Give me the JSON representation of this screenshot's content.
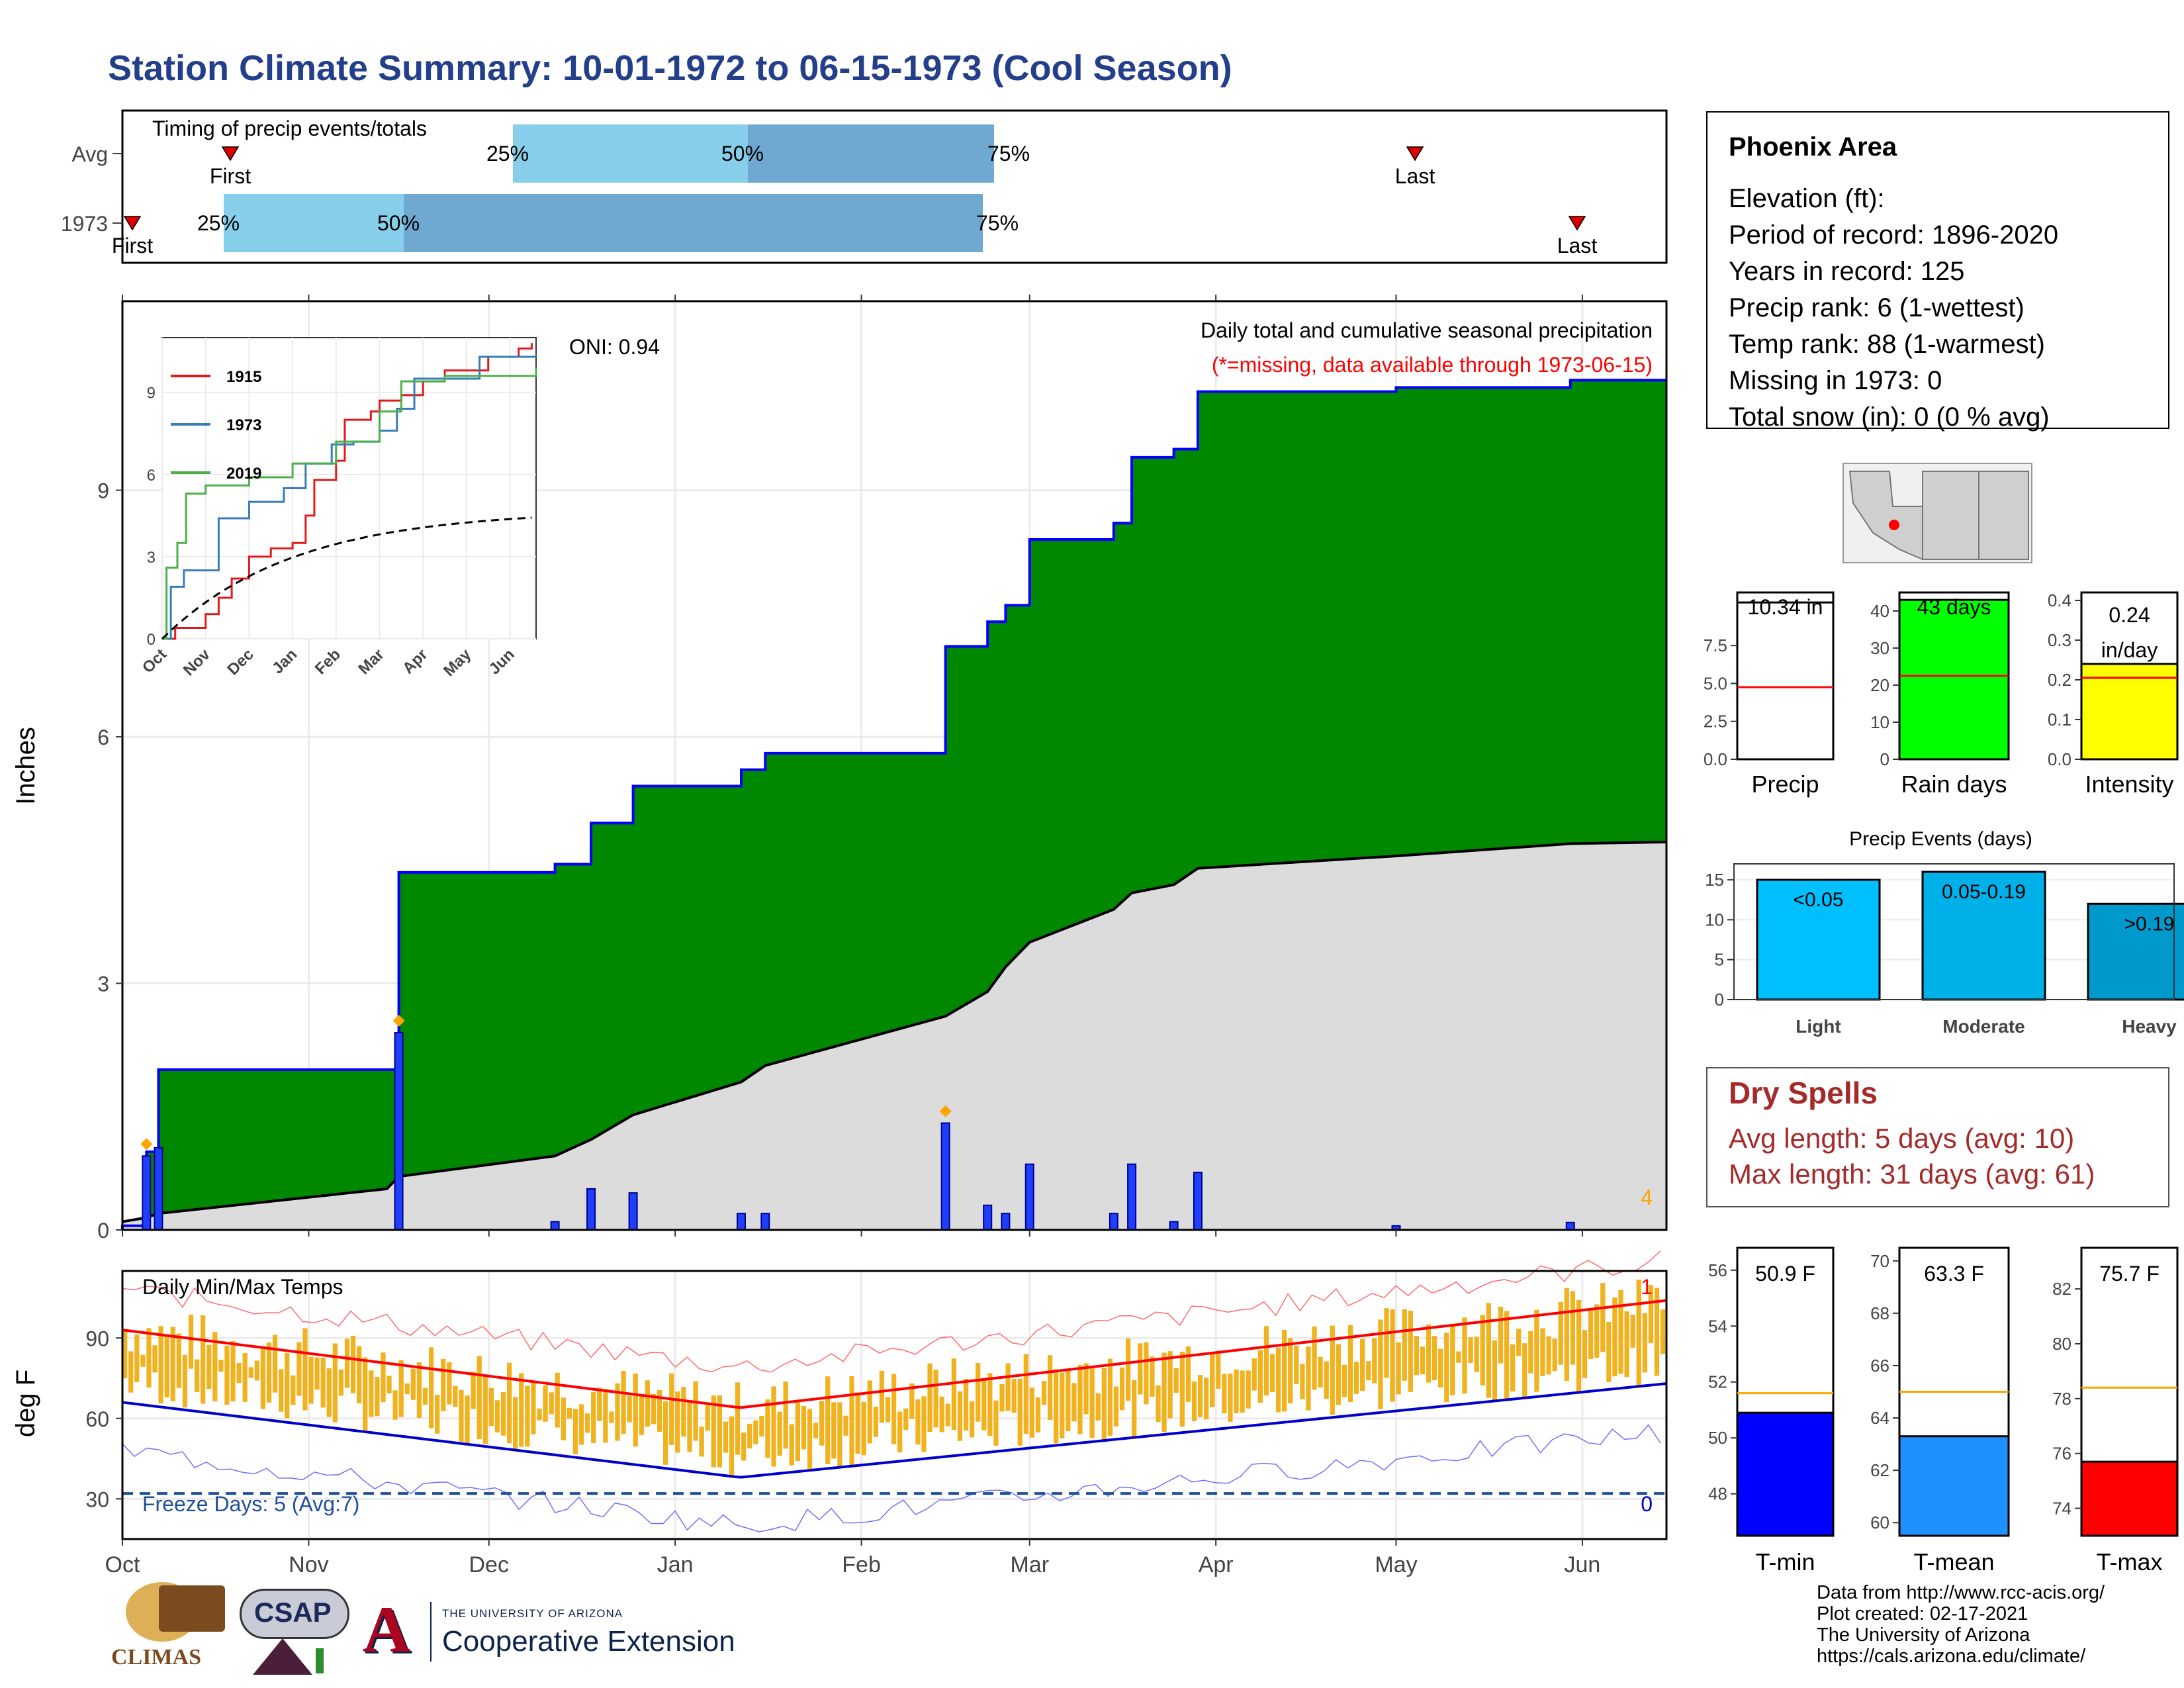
{
  "title": "Station Climate Summary: 10-01-1972 to 06-15-1973 (Cool Season)",
  "timing": {
    "label": "Timing of precip events/totals",
    "rows": [
      {
        "name": "Avg",
        "first": "First",
        "last": "Last",
        "q25": "25%",
        "q50": "50%",
        "q75": "75%"
      },
      {
        "name": "1973",
        "first": "First",
        "last": "Last",
        "q25": "25%",
        "q50": "50%",
        "q75": "75%"
      }
    ]
  },
  "main": {
    "ylabel": "Inches",
    "oni": "ONI: 0.94",
    "caption": "Daily total and cumulative seasonal precipitation",
    "missing_note": "(*=missing, data available through 1973-06-15)",
    "count_label": "4",
    "yticks": [
      "0",
      "3",
      "6",
      "9"
    ]
  },
  "inset": {
    "legend": [
      "1915",
      "1973",
      "2019"
    ],
    "yticks": [
      "0",
      "3",
      "6",
      "9"
    ],
    "xticks": [
      "Oct",
      "Nov",
      "Dec",
      "Jan",
      "Feb",
      "Mar",
      "Apr",
      "May",
      "Jun"
    ]
  },
  "temps": {
    "label": "Daily Min/Max Temps",
    "ylabel": "deg F",
    "yticks": [
      "30",
      "60",
      "90"
    ],
    "freeze": "Freeze Days: 5 (Avg:7)",
    "freeze_count": "0",
    "hot_count": "1",
    "months": [
      "Oct",
      "Nov",
      "Dec",
      "Jan",
      "Feb",
      "Mar",
      "Apr",
      "May",
      "Jun"
    ]
  },
  "station": {
    "name": "Phoenix Area",
    "lines": [
      "Elevation (ft):",
      "Period of record: 1896-2020",
      "Years in record: 125",
      "Precip rank: 6 (1-wettest)",
      "Temp rank: 88 (1-warmest)",
      "Missing in 1973: 0",
      "Total snow (in): 0 (0 % avg)"
    ]
  },
  "mini_bars": [
    {
      "label": "Precip",
      "value_text": "10.34 in",
      "yticks": [
        "0.0",
        "2.5",
        "5.0",
        "7.5"
      ],
      "color": "#ffffff"
    },
    {
      "label": "Rain days",
      "value_text": "43 days",
      "yticks": [
        "0",
        "10",
        "20",
        "30",
        "40"
      ],
      "color": "#00ff00"
    },
    {
      "label": "Intensity",
      "value_text": "0.24 in/day",
      "yticks": [
        "0.0",
        "0.1",
        "0.2",
        "0.3",
        "0.4"
      ],
      "color": "#ffff00"
    }
  ],
  "events": {
    "title": "Precip Events (days)",
    "yticks": [
      "0",
      "5",
      "10",
      "15"
    ],
    "bars": [
      {
        "name": "Light",
        "label": "<0.05",
        "value": 15,
        "color": "#00bfff"
      },
      {
        "name": "Moderate",
        "label": "0.05-0.19",
        "value": 16,
        "color": "#00b0e8"
      },
      {
        "name": "Heavy",
        "label": ">0.19",
        "value": 12,
        "color": "#0099cc"
      }
    ]
  },
  "dry_spells": {
    "title": "Dry Spells",
    "avg": "Avg length: 5 days (avg: 10)",
    "max": "Max length: 31 days (avg: 61)"
  },
  "temp_bars": [
    {
      "label": "T-min",
      "value_text": "50.9 F",
      "yticks": [
        "48",
        "50",
        "52",
        "54",
        "56"
      ],
      "color": "#0000ff"
    },
    {
      "label": "T-mean",
      "value_text": "63.3 F",
      "yticks": [
        "60",
        "62",
        "64",
        "66",
        "68",
        "70"
      ],
      "color": "#1e90ff"
    },
    {
      "label": "T-max",
      "value_text": "75.7 F",
      "yticks": [
        "74",
        "76",
        "78",
        "80",
        "82"
      ],
      "color": "#ff0000"
    }
  ],
  "footer": [
    "Data from http://www.rcc-acis.org/",
    "Plot created: 02-17-2021",
    "The University of Arizona",
    "https://cals.arizona.edu/climate/"
  ],
  "logos": {
    "climas": "CLIMAS",
    "csap": "CSAP",
    "ua_small": "THE UNIVERSITY OF ARIZONA",
    "ua_big": "Cooperative Extension"
  },
  "colors": {
    "title": "#233e8b",
    "green": "#008800",
    "gray": "#dcdcdc",
    "blue": "#0000ff",
    "orange": "#f0b21e",
    "red": "#ff0000",
    "dry": "#a52a2a"
  },
  "chart_data": [
    {
      "type": "area",
      "title": "Daily total and cumulative seasonal precipitation",
      "ylabel": "Inches",
      "ylim": [
        0,
        11.3
      ],
      "x": [
        "1972-10-01",
        "1972-10-05",
        "1972-10-07",
        "1972-11-14",
        "1972-11-16",
        "1972-12-12",
        "1972-12-18",
        "1972-12-25",
        "1973-01-12",
        "1973-01-16",
        "1973-02-15",
        "1973-02-22",
        "1973-02-25",
        "1973-03-01",
        "1973-03-15",
        "1973-03-18",
        "1973-03-25",
        "1973-03-29",
        "1973-05-01",
        "1973-05-30",
        "1973-06-15"
      ],
      "series": [
        {
          "name": "1973",
          "values": [
            0.05,
            0.95,
            1.95,
            1.95,
            4.35,
            4.45,
            4.95,
            5.4,
            5.6,
            5.8,
            7.1,
            7.4,
            7.6,
            8.4,
            8.6,
            9.4,
            9.5,
            10.2,
            10.25,
            10.34,
            10.34
          ]
        },
        {
          "name": "Avg",
          "values": [
            0.1,
            0.15,
            0.2,
            0.5,
            0.65,
            0.9,
            1.1,
            1.4,
            1.8,
            2.0,
            2.6,
            2.9,
            3.2,
            3.5,
            3.9,
            4.1,
            4.2,
            4.4,
            4.55,
            4.7,
            4.72
          ]
        }
      ]
    },
    {
      "type": "line",
      "title": "Timing of precip events/totals",
      "series": [
        {
          "name": "1915"
        },
        {
          "name": "1973"
        },
        {
          "name": "2019"
        }
      ]
    },
    {
      "type": "bar",
      "title": "Daily Min/Max Temps",
      "ylabel": "deg F",
      "ylim": [
        15,
        115
      ]
    },
    {
      "type": "bar",
      "title": "Precip Events (days)",
      "categories": [
        "Light",
        "Moderate",
        "Heavy"
      ],
      "values": [
        15,
        16,
        12
      ],
      "ylim": [
        0,
        17
      ]
    }
  ]
}
